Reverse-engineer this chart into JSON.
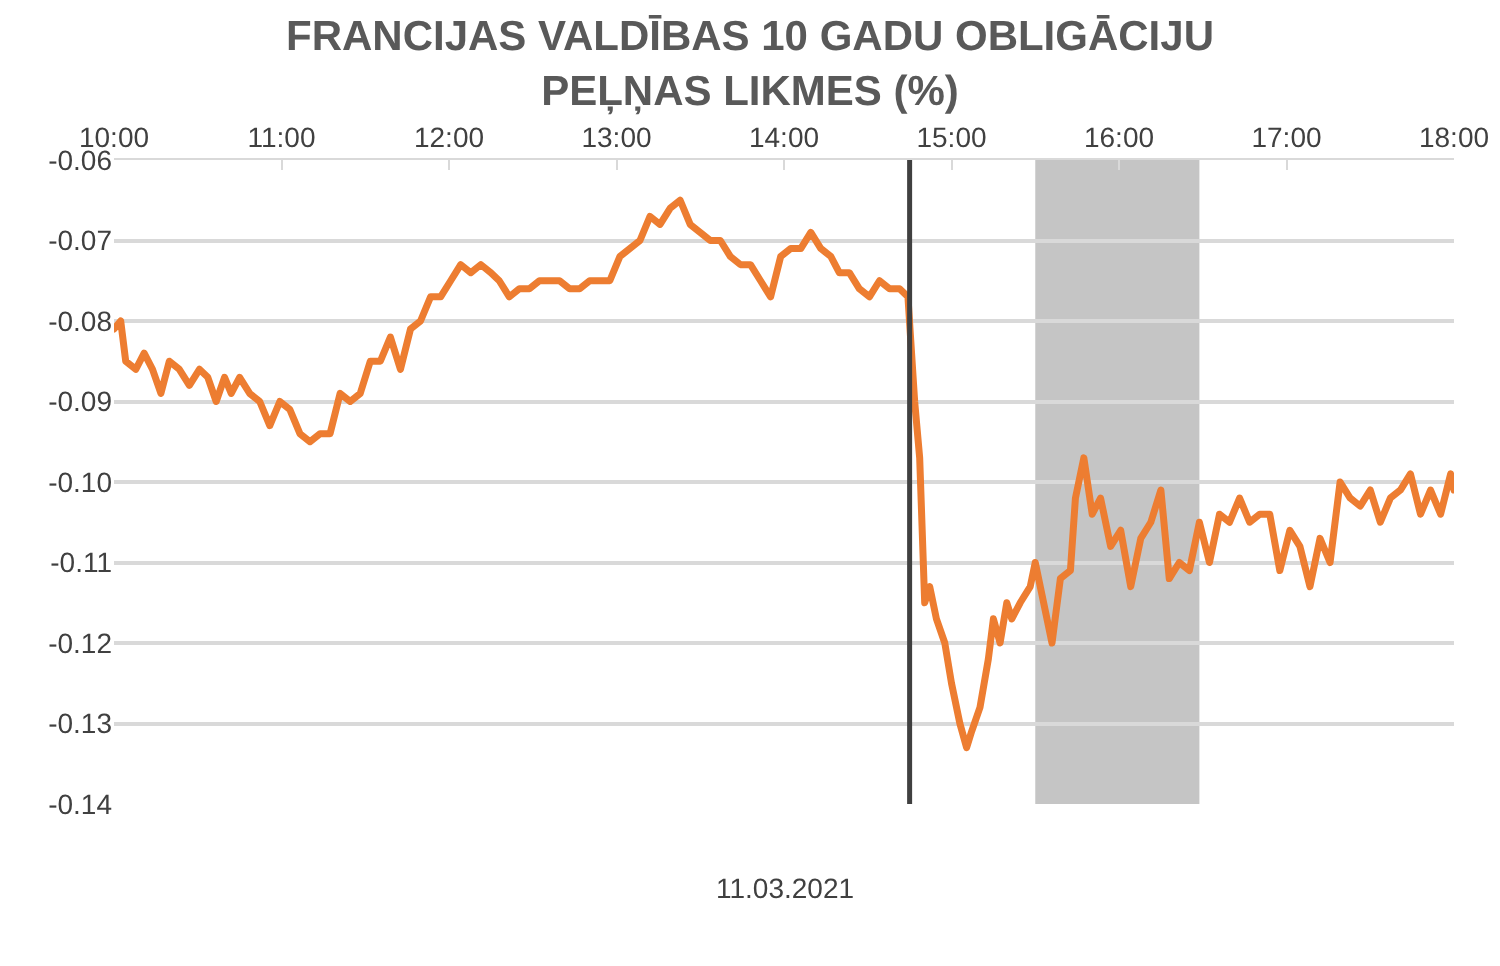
{
  "chart_data": {
    "type": "line",
    "title": "FRANCIJAS VALDĪBAS 10 GADU OBLIGĀCIJU PEĻŅAS LIKMES (%)",
    "xlabel": "11.03.2021",
    "xlim": [
      10,
      18
    ],
    "xticks": [
      {
        "value": 10,
        "label": "10:00"
      },
      {
        "value": 11,
        "label": "11:00"
      },
      {
        "value": 12,
        "label": "12:00"
      },
      {
        "value": 13,
        "label": "13:00"
      },
      {
        "value": 14,
        "label": "14:00"
      },
      {
        "value": 15,
        "label": "15:00"
      },
      {
        "value": 16,
        "label": "16:00"
      },
      {
        "value": 17,
        "label": "17:00"
      },
      {
        "value": 18,
        "label": "18:00"
      }
    ],
    "ylim": [
      -0.14,
      -0.06
    ],
    "yticks": [
      -0.06,
      -0.07,
      -0.08,
      -0.09,
      {
        "value": -0.1,
        "label": "-0.10"
      },
      -0.11,
      -0.12,
      -0.13,
      -0.14
    ],
    "grid": "y",
    "marker": "none",
    "line_style": "solid",
    "ref_lines": [
      {
        "axis": "x",
        "value": 14.75,
        "color": "#404040"
      }
    ],
    "bands": [
      {
        "axis": "x",
        "from": 15.5,
        "to": 16.48,
        "color": "#a6a6a6"
      }
    ],
    "series": [
      {
        "color": "#ed7d31",
        "x": [
          10,
          10.04,
          10.07,
          10.13,
          10.18,
          10.23,
          10.28,
          10.33,
          10.39,
          10.45,
          10.51,
          10.56,
          10.61,
          10.66,
          10.7,
          10.75,
          10.81,
          10.87,
          10.93,
          10.99,
          11.05,
          11.11,
          11.17,
          11.23,
          11.29,
          11.35,
          11.41,
          11.47,
          11.53,
          11.59,
          11.65,
          11.71,
          11.77,
          11.83,
          11.89,
          11.95,
          12.01,
          12.07,
          12.13,
          12.19,
          12.25,
          12.3,
          12.36,
          12.42,
          12.48,
          12.54,
          12.6,
          12.66,
          12.72,
          12.78,
          12.84,
          12.9,
          12.96,
          13.02,
          13.08,
          13.14,
          13.2,
          13.26,
          13.32,
          13.38,
          13.44,
          13.5,
          13.56,
          13.62,
          13.68,
          13.74,
          13.8,
          13.86,
          13.92,
          13.98,
          14.04,
          14.1,
          14.16,
          14.22,
          14.28,
          14.33,
          14.39,
          14.45,
          14.51,
          14.57,
          14.63,
          14.69,
          14.74,
          14.78,
          14.81,
          14.84,
          14.87,
          14.91,
          14.96,
          15,
          15.05,
          15.09,
          15.12,
          15.17,
          15.22,
          15.25,
          15.29,
          15.33,
          15.36,
          15.41,
          15.47,
          15.5,
          15.55,
          15.6,
          15.65,
          15.71,
          15.74,
          15.79,
          15.84,
          15.89,
          15.95,
          16.01,
          16.07,
          16.13,
          16.19,
          16.25,
          16.3,
          16.36,
          16.42,
          16.48,
          16.54,
          16.6,
          16.66,
          16.72,
          16.78,
          16.84,
          16.9,
          16.96,
          17.02,
          17.08,
          17.14,
          17.2,
          17.26,
          17.32,
          17.38,
          17.44,
          17.5,
          17.56,
          17.62,
          17.68,
          17.74,
          17.8,
          17.86,
          17.92,
          17.98,
          18
        ],
        "values": [
          -0.081,
          -0.08,
          -0.085,
          -0.086,
          -0.084,
          -0.086,
          -0.089,
          -0.085,
          -0.086,
          -0.088,
          -0.086,
          -0.087,
          -0.09,
          -0.087,
          -0.089,
          -0.087,
          -0.089,
          -0.09,
          -0.093,
          -0.09,
          -0.091,
          -0.094,
          -0.095,
          -0.094,
          -0.094,
          -0.089,
          -0.09,
          -0.089,
          -0.085,
          -0.085,
          -0.082,
          -0.086,
          -0.081,
          -0.08,
          -0.077,
          -0.077,
          -0.075,
          -0.073,
          -0.074,
          -0.073,
          -0.074,
          -0.075,
          -0.077,
          -0.076,
          -0.076,
          -0.075,
          -0.075,
          -0.075,
          -0.076,
          -0.076,
          -0.075,
          -0.075,
          -0.075,
          -0.072,
          -0.071,
          -0.07,
          -0.067,
          -0.068,
          -0.066,
          -0.065,
          -0.068,
          -0.069,
          -0.07,
          -0.07,
          -0.072,
          -0.073,
          -0.073,
          -0.075,
          -0.077,
          -0.072,
          -0.071,
          -0.071,
          -0.069,
          -0.071,
          -0.072,
          -0.074,
          -0.074,
          -0.076,
          -0.077,
          -0.075,
          -0.076,
          -0.076,
          -0.077,
          -0.09,
          -0.097,
          -0.115,
          -0.113,
          -0.117,
          -0.12,
          -0.125,
          -0.13,
          -0.133,
          -0.131,
          -0.128,
          -0.122,
          -0.117,
          -0.12,
          -0.115,
          -0.117,
          -0.115,
          -0.113,
          -0.11,
          -0.115,
          -0.12,
          -0.112,
          -0.111,
          -0.102,
          -0.097,
          -0.104,
          -0.102,
          -0.108,
          -0.106,
          -0.113,
          -0.107,
          -0.105,
          -0.101,
          -0.112,
          -0.11,
          -0.111,
          -0.105,
          -0.11,
          -0.104,
          -0.105,
          -0.102,
          -0.105,
          -0.104,
          -0.104,
          -0.111,
          -0.106,
          -0.108,
          -0.113,
          -0.107,
          -0.11,
          -0.1,
          -0.102,
          -0.103,
          -0.101,
          -0.105,
          -0.102,
          -0.101,
          -0.099,
          -0.104,
          -0.101,
          -0.104,
          -0.099,
          -0.101
        ]
      }
    ]
  }
}
